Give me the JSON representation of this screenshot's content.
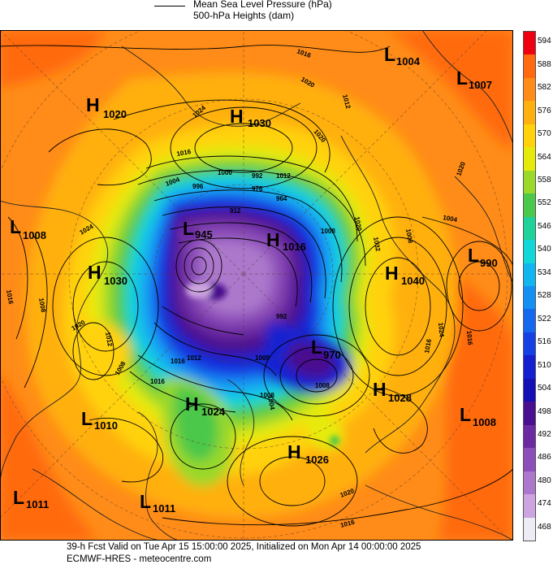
{
  "legend": {
    "mslp": "Mean Sea Level Pressure (hPa)",
    "heights": "500-hPa Heights (dam)"
  },
  "colorbar": {
    "levels": [
      "594",
      "588",
      "582",
      "576",
      "570",
      "564",
      "558",
      "552",
      "546",
      "540",
      "534",
      "528",
      "522",
      "516",
      "510",
      "504",
      "498",
      "492",
      "486",
      "480",
      "474",
      "468"
    ],
    "colors": [
      "#ee0010",
      "#ff6a10",
      "#ff8c18",
      "#ffb010",
      "#ffd20a",
      "#e6ea0a",
      "#9ad82a",
      "#4cc84a",
      "#1ed29a",
      "#10d8d8",
      "#12b6ee",
      "#1490f4",
      "#1468ee",
      "#1440e4",
      "#1420d0",
      "#1410b4",
      "#48108e",
      "#6c2aa2",
      "#8c4eb8",
      "#ac78cc",
      "#cca4e0",
      "#ececf4"
    ]
  },
  "systems": [
    {
      "name": "low-1004-north",
      "type": "L",
      "value": "1004"
    },
    {
      "name": "low-1007-northeast",
      "type": "L",
      "value": "1007"
    },
    {
      "name": "high-1020-northwest",
      "type": "H",
      "value": "1020"
    },
    {
      "name": "high-1030-north",
      "type": "H",
      "value": "1030"
    },
    {
      "name": "low-1008-west",
      "type": "L",
      "value": "1008"
    },
    {
      "name": "high-1030-west",
      "type": "H",
      "value": "1030"
    },
    {
      "name": "low-945-center",
      "type": "L",
      "value": "945"
    },
    {
      "name": "high-1016-center",
      "type": "H",
      "value": "1016"
    },
    {
      "name": "high-1040-east",
      "type": "H",
      "value": "1040"
    },
    {
      "name": "low-990-east",
      "type": "L",
      "value": "990"
    },
    {
      "name": "low-970-center-south",
      "type": "L",
      "value": "970"
    },
    {
      "name": "high-1028-southeast",
      "type": "H",
      "value": "1028"
    },
    {
      "name": "low-1008-southeast",
      "type": "L",
      "value": "1008"
    },
    {
      "name": "high-1024-south",
      "type": "H",
      "value": "1024"
    },
    {
      "name": "low-1010-southwest",
      "type": "L",
      "value": "1010"
    },
    {
      "name": "high-1026-south",
      "type": "H",
      "value": "1026"
    },
    {
      "name": "low-1011-far-southwest",
      "type": "L",
      "value": "1011"
    },
    {
      "name": "low-1011-south",
      "type": "L",
      "value": "1011"
    }
  ],
  "isobar_labels": [
    "1016",
    "1012",
    "1020",
    "1024",
    "1020",
    "1016",
    "1004",
    "996",
    "1000",
    "1012",
    "992",
    "976",
    "964",
    "912",
    "1008",
    "1024",
    "1016",
    "1008",
    "1020",
    "1032",
    "1008",
    "1004",
    "1020",
    "1024",
    "1016",
    "1016",
    "1020",
    "1012",
    "1008",
    "1016",
    "1000",
    "1004",
    "1008",
    "992",
    "1008",
    "1012",
    "1016",
    "1020",
    "1016"
  ],
  "footer": {
    "line1": "39-h Fcst Valid on Tue Apr 15 15:00:00 2025, Initialized on Mon Apr 14 00:00:00 2025",
    "line2": "ECMWF-HRES  - meteocentre.com"
  }
}
